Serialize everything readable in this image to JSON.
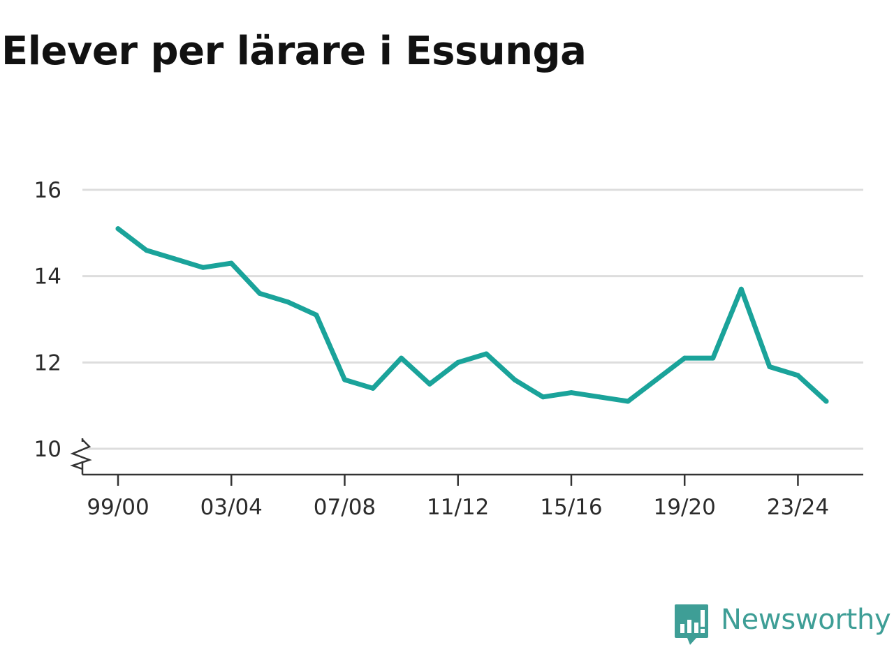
{
  "title": "Elever per lärare i Essunga",
  "brand": {
    "name": "Newsworthy",
    "icon": "newsworthy-logo-icon",
    "color": "#3e9e96"
  },
  "colors": {
    "line": "#1aa39a",
    "grid": "#dddddd",
    "axis": "#333333",
    "text": "#2b2b2b"
  },
  "chart_data": {
    "type": "line",
    "title": "Elever per lärare i Essunga",
    "xlabel": "",
    "ylabel": "",
    "ylim": [
      10,
      16
    ],
    "y_axis_break": true,
    "yticks": [
      10,
      12,
      14,
      16
    ],
    "grid": "horizontal",
    "x_tick_labels": [
      "99/00",
      "03/04",
      "07/08",
      "11/12",
      "15/16",
      "19/20",
      "23/24"
    ],
    "x": [
      "99/00",
      "00/01",
      "01/02",
      "02/03",
      "03/04",
      "04/05",
      "05/06",
      "06/07",
      "07/08",
      "08/09",
      "09/10",
      "10/11",
      "11/12",
      "12/13",
      "13/14",
      "14/15",
      "15/16",
      "16/17",
      "17/18",
      "18/19",
      "19/20",
      "20/21",
      "21/22",
      "22/23",
      "23/24",
      "24/25"
    ],
    "values": [
      15.1,
      14.6,
      14.4,
      14.2,
      14.3,
      13.6,
      13.4,
      13.1,
      11.6,
      11.4,
      12.1,
      11.5,
      12.0,
      12.2,
      11.6,
      11.2,
      11.3,
      11.2,
      11.1,
      11.6,
      12.1,
      12.1,
      13.7,
      11.9,
      11.7,
      11.1
    ]
  }
}
